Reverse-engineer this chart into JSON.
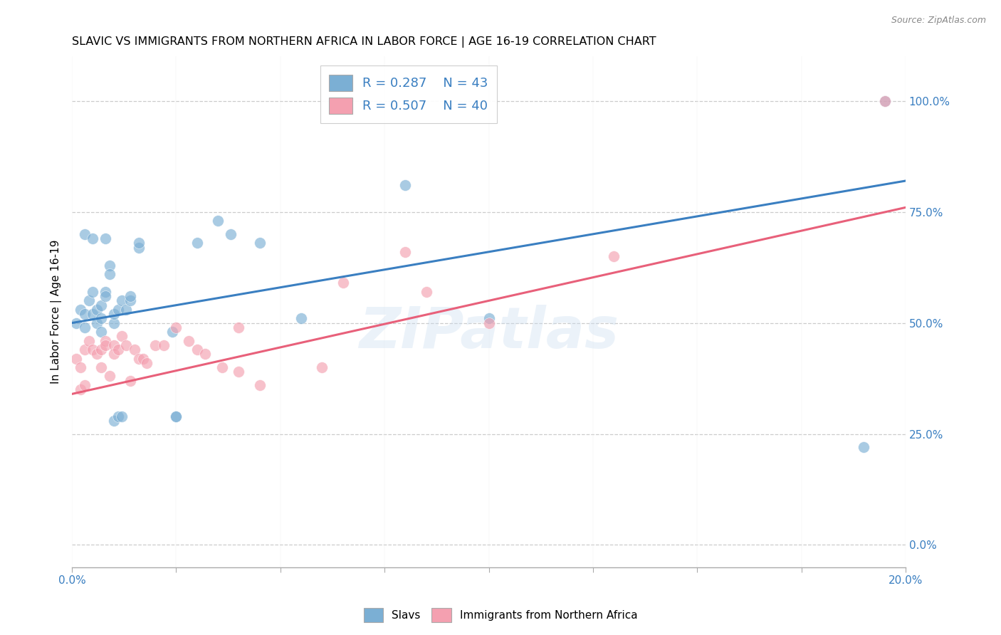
{
  "title": "SLAVIC VS IMMIGRANTS FROM NORTHERN AFRICA IN LABOR FORCE | AGE 16-19 CORRELATION CHART",
  "source": "Source: ZipAtlas.com",
  "ylabel": "In Labor Force | Age 16-19",
  "xlim": [
    0.0,
    0.2
  ],
  "ylim": [
    -0.05,
    1.1
  ],
  "ytick_values": [
    0.0,
    0.25,
    0.5,
    0.75,
    1.0
  ],
  "blue_R": 0.287,
  "blue_N": 43,
  "pink_R": 0.507,
  "pink_N": 40,
  "blue_color": "#7BAFD4",
  "pink_color": "#F4A0B0",
  "blue_line_color": "#3A7FC1",
  "pink_line_color": "#E8607A",
  "stat_label_color": "#3A7FC1",
  "tick_color": "#3A7FC1",
  "legend_label_blue": "Slavs",
  "legend_label_pink": "Immigrants from Northern Africa",
  "watermark_text": "ZIPatlas",
  "blue_line_x0": 0.0,
  "blue_line_y0": 0.5,
  "blue_line_x1": 0.2,
  "blue_line_y1": 0.82,
  "pink_line_x0": 0.0,
  "pink_line_y0": 0.34,
  "pink_line_x1": 0.2,
  "pink_line_y1": 0.76,
  "blue_x": [
    0.001,
    0.002,
    0.003,
    0.003,
    0.004,
    0.005,
    0.005,
    0.006,
    0.006,
    0.007,
    0.007,
    0.007,
    0.008,
    0.008,
    0.009,
    0.009,
    0.01,
    0.01,
    0.01,
    0.011,
    0.011,
    0.012,
    0.012,
    0.013,
    0.014,
    0.014,
    0.016,
    0.016,
    0.024,
    0.025,
    0.025,
    0.03,
    0.035,
    0.038,
    0.045,
    0.055,
    0.08,
    0.1,
    0.19,
    0.195,
    0.003,
    0.005,
    0.008
  ],
  "blue_y": [
    0.5,
    0.53,
    0.52,
    0.49,
    0.55,
    0.57,
    0.52,
    0.53,
    0.5,
    0.54,
    0.51,
    0.48,
    0.57,
    0.56,
    0.63,
    0.61,
    0.5,
    0.52,
    0.28,
    0.29,
    0.53,
    0.55,
    0.29,
    0.53,
    0.55,
    0.56,
    0.67,
    0.68,
    0.48,
    0.29,
    0.29,
    0.68,
    0.73,
    0.7,
    0.68,
    0.51,
    0.81,
    0.51,
    0.22,
    1.0,
    0.7,
    0.69,
    0.69
  ],
  "pink_x": [
    0.001,
    0.002,
    0.003,
    0.004,
    0.005,
    0.006,
    0.007,
    0.007,
    0.008,
    0.008,
    0.009,
    0.01,
    0.01,
    0.011,
    0.012,
    0.013,
    0.014,
    0.015,
    0.016,
    0.017,
    0.018,
    0.02,
    0.022,
    0.025,
    0.028,
    0.03,
    0.032,
    0.036,
    0.04,
    0.04,
    0.045,
    0.06,
    0.065,
    0.08,
    0.085,
    0.1,
    0.13,
    0.195,
    0.002,
    0.003
  ],
  "pink_y": [
    0.42,
    0.4,
    0.44,
    0.46,
    0.44,
    0.43,
    0.4,
    0.44,
    0.46,
    0.45,
    0.38,
    0.45,
    0.43,
    0.44,
    0.47,
    0.45,
    0.37,
    0.44,
    0.42,
    0.42,
    0.41,
    0.45,
    0.45,
    0.49,
    0.46,
    0.44,
    0.43,
    0.4,
    0.39,
    0.49,
    0.36,
    0.4,
    0.59,
    0.66,
    0.57,
    0.5,
    0.65,
    1.0,
    0.35,
    0.36
  ]
}
